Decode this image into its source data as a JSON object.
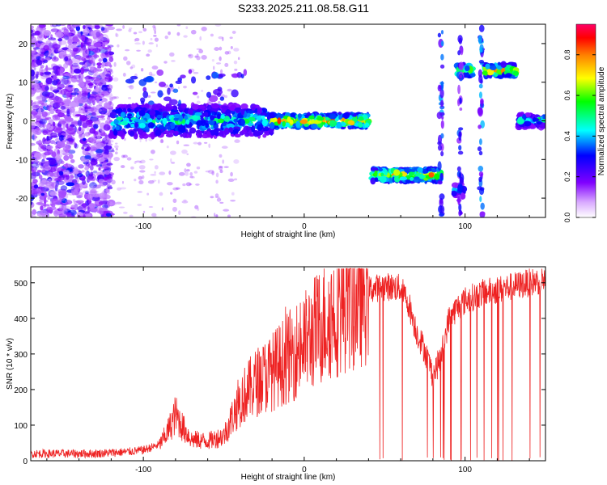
{
  "title": "S233.2025.211.08.58.G11",
  "chart_data": [
    {
      "type": "heatmap",
      "title": "S233.2025.211.08.58.G11",
      "xlabel": "Height of straight line (km)",
      "ylabel": "Frequency (Hz)",
      "xlim": [
        -170,
        150
      ],
      "ylim": [
        -25,
        25
      ],
      "xticks": [
        -100,
        0,
        100
      ],
      "yticks": [
        -20,
        -10,
        0,
        10,
        20
      ],
      "colorbar": {
        "label": "Normalized spectral amplitude",
        "range": [
          0.0,
          0.95
        ],
        "ticks": [
          0.0,
          0.2,
          0.4,
          0.6,
          0.8
        ],
        "tick_labels": [
          "0.0",
          "0.2",
          "0.4",
          "0.6",
          "0.8"
        ],
        "colormap": [
          "#ffffff",
          "#8000ff",
          "#0000ff",
          "#00ffff",
          "#00ff00",
          "#ffff00",
          "#ff8000",
          "#ff0000",
          "#ff0066"
        ]
      },
      "features": [
        {
          "x_range": [
            -120,
            40
          ],
          "frequency": 0,
          "peak_amplitude": 0.9
        },
        {
          "x_range": [
            42,
            85
          ],
          "frequency": -14,
          "peak_amplitude": 0.85
        },
        {
          "x_range": [
            95,
            105
          ],
          "frequency": 13,
          "peak_amplitude": 0.7
        },
        {
          "x_range": [
            112,
            132
          ],
          "frequency": 13,
          "peak_amplitude": 0.8
        },
        {
          "x_range": [
            133,
            150
          ],
          "frequency": 0,
          "peak_amplitude": 0.5
        },
        {
          "x_range": [
            93,
            99
          ],
          "frequency": -18,
          "peak_amplitude": 0.4
        }
      ]
    },
    {
      "type": "line",
      "xlabel": "Height of straight line (km)",
      "ylabel": "SNR (10 * v/v)",
      "xlim": [
        -170,
        150
      ],
      "ylim": [
        0,
        545
      ],
      "xticks": [
        -100,
        0,
        100
      ],
      "yticks": [
        0,
        100,
        200,
        300,
        400,
        500
      ],
      "line_color": "#ee2222",
      "series": [
        {
          "x": [
            -170,
            -150,
            -130,
            -110,
            -100,
            -90,
            -85,
            -80,
            -75,
            -70,
            -60,
            -50,
            -40,
            -30,
            -20,
            -10,
            0,
            10,
            20,
            30,
            40,
            50,
            60,
            65,
            70,
            75,
            80,
            85,
            90,
            95,
            100,
            110,
            120,
            130,
            140,
            150
          ],
          "values": [
            20,
            20,
            20,
            25,
            30,
            45,
            80,
            130,
            90,
            60,
            55,
            70,
            170,
            220,
            250,
            290,
            330,
            380,
            420,
            460,
            480,
            490,
            485,
            440,
            360,
            310,
            240,
            290,
            400,
            430,
            450,
            470,
            480,
            490,
            500,
            510
          ]
        }
      ]
    }
  ]
}
